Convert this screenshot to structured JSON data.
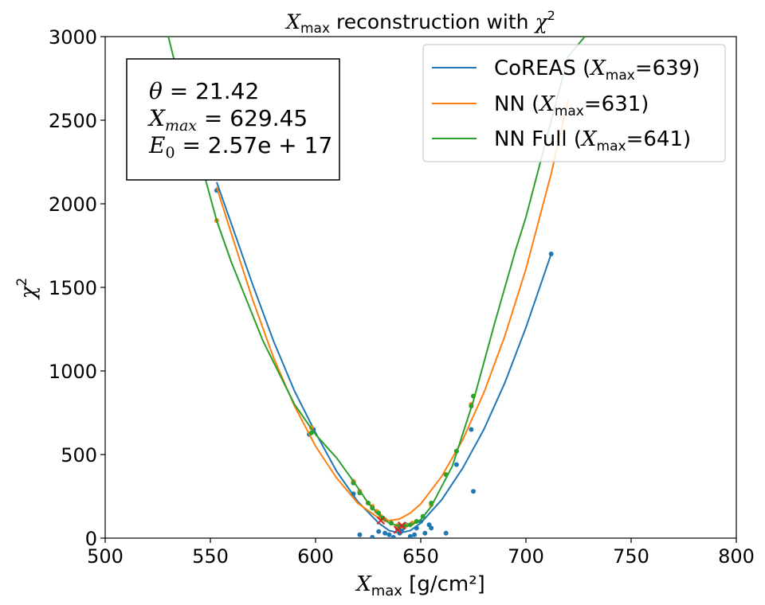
{
  "chart_data": {
    "type": "line",
    "title": "X_max reconstruction with χ²",
    "title_parts": {
      "main": "X",
      "sub": "max",
      "rest": " reconstruction with ",
      "chi": "χ",
      "sup": "2"
    },
    "xlabel": "X_max [g/cm²]",
    "xlabel_parts": {
      "main": "X",
      "sub": "max",
      "rest": " [g/cm²]"
    },
    "ylabel": "χ²",
    "ylabel_parts": {
      "main": "χ",
      "sup": "2"
    },
    "xlim": [
      500,
      800
    ],
    "ylim": [
      0,
      3000
    ],
    "xticks": [
      500,
      550,
      600,
      650,
      700,
      750,
      800
    ],
    "yticks": [
      0,
      500,
      1000,
      1500,
      2000,
      2500,
      3000
    ],
    "xtick_labels": [
      "500",
      "550",
      "600",
      "650",
      "700",
      "750",
      "800"
    ],
    "ytick_labels": [
      "0",
      "500",
      "1000",
      "1500",
      "2000",
      "2500",
      "3000"
    ],
    "grid": false,
    "legend_position": "top-right",
    "info_box": {
      "lines": [
        "θ = 21.42",
        "X_max = 629.45",
        "E_0 = 2.57e + 17"
      ],
      "line_parts": [
        {
          "main": "θ",
          "sub": "",
          "rest": " = 21.42"
        },
        {
          "main": "X",
          "sub": "max",
          "rest": " = 629.45"
        },
        {
          "main": "E",
          "sub": "0",
          "rest": " = 2.57e + 17"
        }
      ]
    },
    "series": [
      {
        "name": "CoREAS (X_max=639)",
        "legend_parts": {
          "pre": "CoREAS (",
          "main": "X",
          "sub": "max",
          "rest": "=639)"
        },
        "color": "#1f77b4",
        "curve": {
          "x": [
            553,
            560,
            570,
            580,
            590,
            600,
            610,
            620,
            630,
            635,
            640,
            645,
            650,
            660,
            670,
            680,
            690,
            700,
            712
          ],
          "y": [
            2130,
            1880,
            1520,
            1180,
            880,
            630,
            400,
            220,
            90,
            45,
            30,
            45,
            90,
            230,
            420,
            650,
            930,
            1260,
            1700
          ]
        },
        "points": {
          "x": [
            553,
            597,
            599,
            618,
            621,
            627,
            630,
            633,
            635,
            637,
            639,
            640,
            641,
            642,
            643,
            645,
            647,
            648,
            650,
            652,
            654,
            655,
            662,
            667,
            674,
            675,
            712
          ],
          "y": [
            2080,
            620,
            650,
            265,
            20,
            5,
            40,
            30,
            20,
            5,
            55,
            30,
            50,
            65,
            80,
            10,
            20,
            60,
            100,
            30,
            80,
            60,
            30,
            440,
            650,
            280,
            1700
          ]
        },
        "minimum": {
          "x": 639,
          "y": 50
        }
      },
      {
        "name": "NN (X_max=631)",
        "legend_parts": {
          "pre": "NN (",
          "main": "X",
          "sub": "max",
          "rest": "=631)"
        },
        "color": "#ff7f0e",
        "curve": {
          "x": [
            553,
            560,
            570,
            580,
            590,
            600,
            610,
            620,
            630,
            635,
            640,
            645,
            650,
            660,
            670,
            680,
            690,
            700,
            712,
            720
          ],
          "y": [
            2100,
            1820,
            1430,
            1080,
            790,
            550,
            360,
            210,
            120,
            105,
            115,
            150,
            205,
            370,
            590,
            870,
            1210,
            1610,
            2180,
            2620
          ]
        },
        "points": {
          "x": [
            553,
            598,
            618,
            621,
            625,
            627,
            629,
            631,
            633,
            636,
            639,
            641,
            643,
            646,
            648,
            655,
            662,
            667,
            674,
            675
          ],
          "y": [
            1900,
            660,
            340,
            280,
            210,
            190,
            160,
            130,
            110,
            90,
            75,
            70,
            75,
            90,
            100,
            200,
            380,
            520,
            800,
            850
          ]
        },
        "minimum": {
          "x": 631,
          "y": 105
        }
      },
      {
        "name": "NN Full (X_max=641)",
        "legend_parts": {
          "pre": "NN Full (",
          "main": "X",
          "sub": "max",
          "rest": "=641)"
        },
        "color": "#2ca02c",
        "curve": {
          "x": [
            530,
            540,
            553,
            560,
            575,
            590,
            600,
            610,
            618,
            625,
            630,
            635,
            640,
            645,
            650,
            655,
            665,
            675,
            685,
            695,
            700,
            710,
            720,
            728
          ],
          "y": [
            3000,
            2500,
            1900,
            1650,
            1180,
            800,
            620,
            480,
            340,
            210,
            140,
            90,
            70,
            75,
            110,
            190,
            430,
            820,
            1280,
            1720,
            1920,
            2400,
            2880,
            3000
          ]
        },
        "points": {
          "x": [
            598,
            618,
            621,
            625,
            627,
            630,
            632,
            636,
            640,
            642,
            645,
            648,
            651,
            655,
            662,
            667,
            674,
            675
          ],
          "y": [
            630,
            330,
            270,
            210,
            180,
            150,
            120,
            90,
            70,
            75,
            80,
            100,
            130,
            210,
            380,
            520,
            790,
            850
          ]
        },
        "minimum": {
          "x": 641,
          "y": 75
        }
      }
    ]
  }
}
